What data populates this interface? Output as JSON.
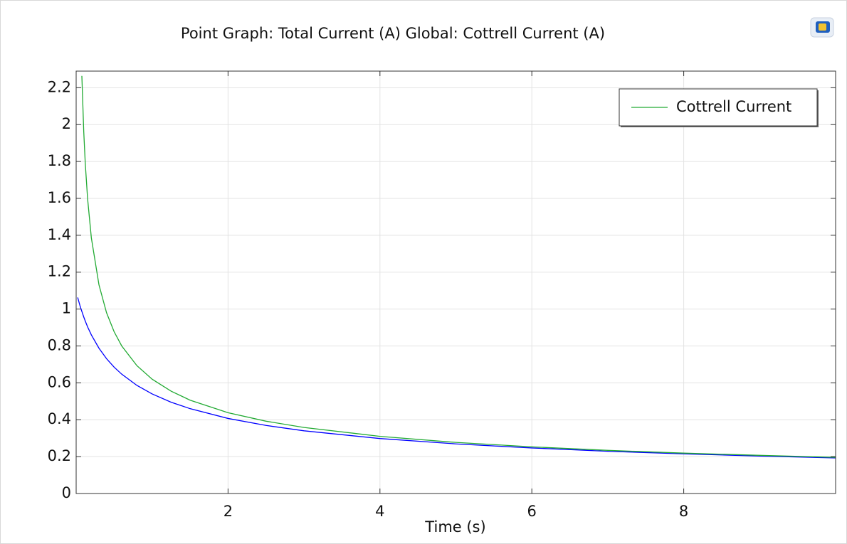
{
  "chart_data": {
    "type": "line",
    "title": "Point Graph: Total Current (A)  Global: Cottrell Current (A)",
    "xlabel": "Time (s)",
    "x": [
      0.02,
      0.05,
      0.075,
      0.1,
      0.12,
      0.15,
      0.2,
      0.3,
      0.4,
      0.5,
      0.6,
      0.8,
      1,
      1.25,
      1.5,
      2,
      2.5,
      3,
      4,
      5,
      6,
      7,
      8,
      9,
      10
    ],
    "series": [
      {
        "color": "#0000ff",
        "values": [
          1.063,
          1.019,
          0.987,
          0.957,
          0.935,
          0.904,
          0.86,
          0.788,
          0.731,
          0.685,
          0.647,
          0.586,
          0.54,
          0.495,
          0.46,
          0.407,
          0.369,
          0.34,
          0.298,
          0.269,
          0.247,
          0.229,
          0.215,
          0.203,
          0.193
        ]
      },
      {
        "name": "Cottrell Current",
        "color": "#22aa33",
        "values": [
          null,
          null,
          2.264,
          1.961,
          1.79,
          1.601,
          1.386,
          1.132,
          0.98,
          0.877,
          0.8,
          0.693,
          0.62,
          0.555,
          0.506,
          0.438,
          0.392,
          0.358,
          0.31,
          0.277,
          0.253,
          0.234,
          0.219,
          0.207,
          0.196
        ]
      }
    ],
    "xlim": [
      0,
      10
    ],
    "xticks": [
      2,
      4,
      6,
      8
    ],
    "ylim": [
      0,
      2.29
    ],
    "yticks": [
      0,
      0.2,
      0.4,
      0.6,
      0.8,
      1,
      1.2,
      1.4,
      1.6,
      1.8,
      2,
      2.2
    ],
    "grid": true,
    "legend": "upper right"
  }
}
